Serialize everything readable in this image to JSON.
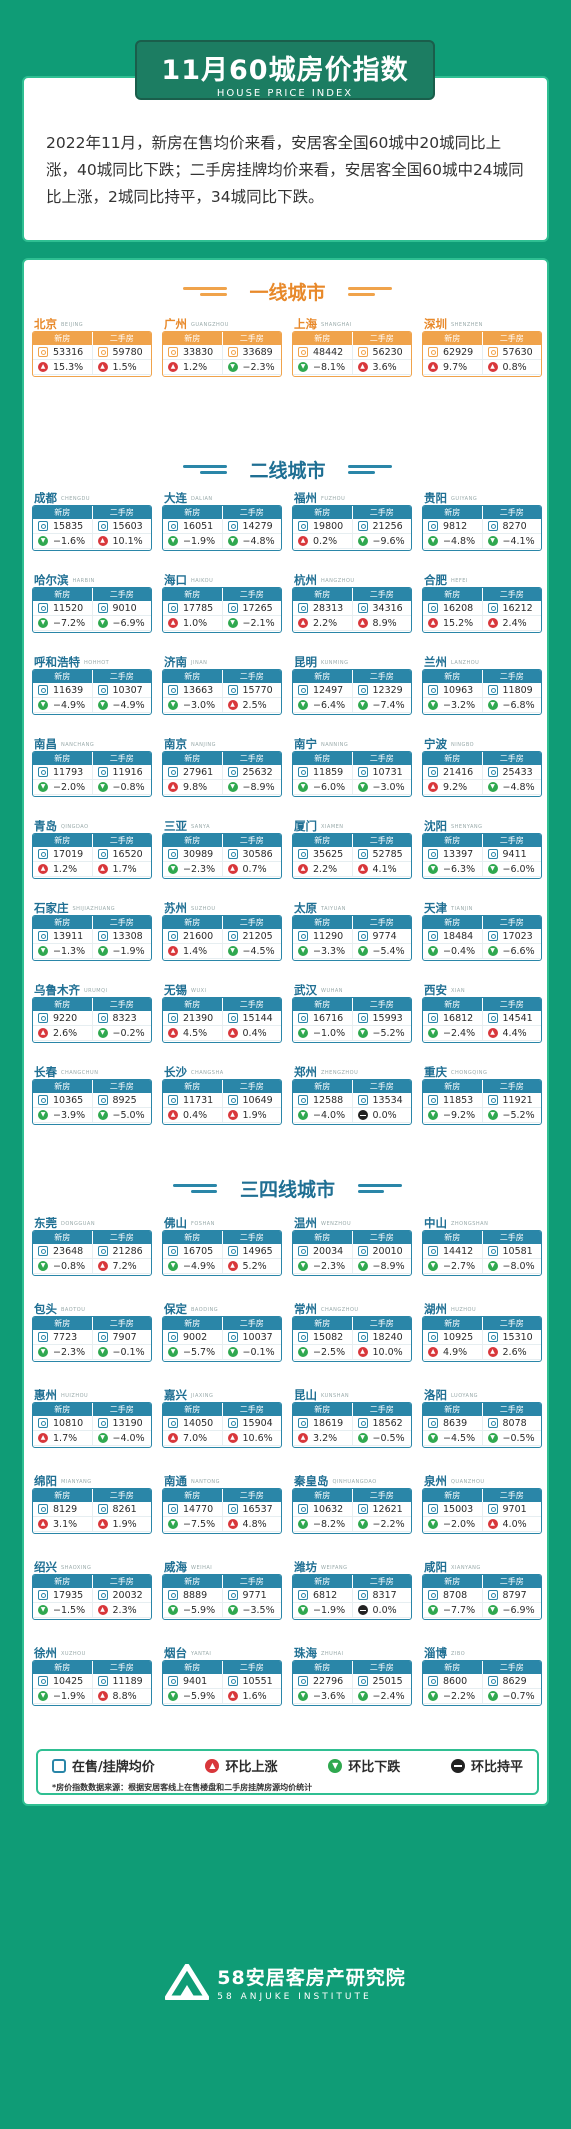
{
  "header": {
    "title": "11月60城房价指数",
    "subtitle": "HOUSE PRICE INDEX"
  },
  "intro": {
    "text": "2022年11月，新房在售均价来看，安居客全国60城中20城同比上涨，40城同比下跌；二手房挂牌均价来看，安居客全国60城中24城同比上涨，2城同比持平，34城同比下跌。"
  },
  "columns": {
    "new": "新房",
    "second": "二手房"
  },
  "tiers": [
    {
      "title": "一线城市",
      "cities": [
        {
          "name": "北京",
          "py": "BEIJING",
          "new_price": "53316",
          "new_chg": "15.3%",
          "new_dir": "up",
          "sec_price": "59780",
          "sec_chg": "1.5%",
          "sec_dir": "up"
        },
        {
          "name": "广州",
          "py": "GUANGZHOU",
          "new_price": "33830",
          "new_chg": "1.2%",
          "new_dir": "up",
          "sec_price": "33689",
          "sec_chg": "−2.3%",
          "sec_dir": "down"
        },
        {
          "name": "上海",
          "py": "SHANGHAI",
          "new_price": "48442",
          "new_chg": "−8.1%",
          "new_dir": "down",
          "sec_price": "56230",
          "sec_chg": "3.6%",
          "sec_dir": "up"
        },
        {
          "name": "深圳",
          "py": "SHENZHEN",
          "new_price": "62929",
          "new_chg": "9.7%",
          "new_dir": "up",
          "sec_price": "57630",
          "sec_chg": "0.8%",
          "sec_dir": "up"
        }
      ]
    },
    {
      "title": "二线城市",
      "cities": [
        {
          "name": "成都",
          "py": "CHENGDU",
          "new_price": "15835",
          "new_chg": "−1.6%",
          "new_dir": "down",
          "sec_price": "15603",
          "sec_chg": "10.1%",
          "sec_dir": "up"
        },
        {
          "name": "大连",
          "py": "DALIAN",
          "new_price": "16051",
          "new_chg": "−1.9%",
          "new_dir": "down",
          "sec_price": "14279",
          "sec_chg": "−4.8%",
          "sec_dir": "down"
        },
        {
          "name": "福州",
          "py": "FUZHOU",
          "new_price": "19800",
          "new_chg": "0.2%",
          "new_dir": "up",
          "sec_price": "21256",
          "sec_chg": "−9.6%",
          "sec_dir": "down"
        },
        {
          "name": "贵阳",
          "py": "GUIYANG",
          "new_price": "9812",
          "new_chg": "−4.8%",
          "new_dir": "down",
          "sec_price": "8270",
          "sec_chg": "−4.1%",
          "sec_dir": "down"
        },
        {
          "name": "哈尔滨",
          "py": "HARBIN",
          "new_price": "11520",
          "new_chg": "−7.2%",
          "new_dir": "down",
          "sec_price": "9010",
          "sec_chg": "−6.9%",
          "sec_dir": "down"
        },
        {
          "name": "海口",
          "py": "HAIKOU",
          "new_price": "17785",
          "new_chg": "1.0%",
          "new_dir": "up",
          "sec_price": "17265",
          "sec_chg": "−2.1%",
          "sec_dir": "down"
        },
        {
          "name": "杭州",
          "py": "HANGZHOU",
          "new_price": "28313",
          "new_chg": "2.2%",
          "new_dir": "up",
          "sec_price": "34316",
          "sec_chg": "8.9%",
          "sec_dir": "up"
        },
        {
          "name": "合肥",
          "py": "HEFEI",
          "new_price": "16208",
          "new_chg": "15.2%",
          "new_dir": "up",
          "sec_price": "16212",
          "sec_chg": "2.4%",
          "sec_dir": "up"
        },
        {
          "name": "呼和浩特",
          "py": "HOHHOT",
          "new_price": "11639",
          "new_chg": "−4.9%",
          "new_dir": "down",
          "sec_price": "10307",
          "sec_chg": "−4.9%",
          "sec_dir": "down"
        },
        {
          "name": "济南",
          "py": "JINAN",
          "new_price": "13663",
          "new_chg": "−3.0%",
          "new_dir": "down",
          "sec_price": "15770",
          "sec_chg": "2.5%",
          "sec_dir": "up"
        },
        {
          "name": "昆明",
          "py": "KUNMING",
          "new_price": "12497",
          "new_chg": "−6.4%",
          "new_dir": "down",
          "sec_price": "12329",
          "sec_chg": "−7.4%",
          "sec_dir": "down"
        },
        {
          "name": "兰州",
          "py": "LANZHOU",
          "new_price": "10963",
          "new_chg": "−3.2%",
          "new_dir": "down",
          "sec_price": "11809",
          "sec_chg": "−6.8%",
          "sec_dir": "down"
        },
        {
          "name": "南昌",
          "py": "NANCHANG",
          "new_price": "11793",
          "new_chg": "−2.0%",
          "new_dir": "down",
          "sec_price": "11916",
          "sec_chg": "−0.8%",
          "sec_dir": "down"
        },
        {
          "name": "南京",
          "py": "NANJING",
          "new_price": "27961",
          "new_chg": "9.8%",
          "new_dir": "up",
          "sec_price": "25632",
          "sec_chg": "−8.9%",
          "sec_dir": "down"
        },
        {
          "name": "南宁",
          "py": "NANNING",
          "new_price": "11859",
          "new_chg": "−6.0%",
          "new_dir": "down",
          "sec_price": "10731",
          "sec_chg": "−3.0%",
          "sec_dir": "down"
        },
        {
          "name": "宁波",
          "py": "NINGBO",
          "new_price": "21416",
          "new_chg": "9.2%",
          "new_dir": "up",
          "sec_price": "25433",
          "sec_chg": "−4.8%",
          "sec_dir": "down"
        },
        {
          "name": "青岛",
          "py": "QINGDAO",
          "new_price": "17019",
          "new_chg": "1.2%",
          "new_dir": "up",
          "sec_price": "16520",
          "sec_chg": "1.7%",
          "sec_dir": "up"
        },
        {
          "name": "三亚",
          "py": "SANYA",
          "new_price": "30989",
          "new_chg": "−2.3%",
          "new_dir": "down",
          "sec_price": "30586",
          "sec_chg": "0.7%",
          "sec_dir": "up"
        },
        {
          "name": "厦门",
          "py": "XIAMEN",
          "new_price": "35625",
          "new_chg": "2.2%",
          "new_dir": "up",
          "sec_price": "52785",
          "sec_chg": "4.1%",
          "sec_dir": "up"
        },
        {
          "name": "沈阳",
          "py": "SHENYANG",
          "new_price": "13397",
          "new_chg": "−6.3%",
          "new_dir": "down",
          "sec_price": "9411",
          "sec_chg": "−6.0%",
          "sec_dir": "down"
        },
        {
          "name": "石家庄",
          "py": "SHIJIAZHUANG",
          "new_price": "13911",
          "new_chg": "−1.3%",
          "new_dir": "down",
          "sec_price": "13308",
          "sec_chg": "−1.9%",
          "sec_dir": "down"
        },
        {
          "name": "苏州",
          "py": "SUZHOU",
          "new_price": "21600",
          "new_chg": "1.4%",
          "new_dir": "up",
          "sec_price": "21205",
          "sec_chg": "−4.5%",
          "sec_dir": "down"
        },
        {
          "name": "太原",
          "py": "TAIYUAN",
          "new_price": "11290",
          "new_chg": "−3.3%",
          "new_dir": "down",
          "sec_price": "9774",
          "sec_chg": "−5.4%",
          "sec_dir": "down"
        },
        {
          "name": "天津",
          "py": "TIANJIN",
          "new_price": "18484",
          "new_chg": "−0.4%",
          "new_dir": "down",
          "sec_price": "17023",
          "sec_chg": "−6.6%",
          "sec_dir": "down"
        },
        {
          "name": "乌鲁木齐",
          "py": "URUMQI",
          "new_price": "9220",
          "new_chg": "2.6%",
          "new_dir": "up",
          "sec_price": "8323",
          "sec_chg": "−0.2%",
          "sec_dir": "down"
        },
        {
          "name": "无锡",
          "py": "WUXI",
          "new_price": "21390",
          "new_chg": "4.5%",
          "new_dir": "up",
          "sec_price": "15144",
          "sec_chg": "0.4%",
          "sec_dir": "up"
        },
        {
          "name": "武汉",
          "py": "WUHAN",
          "new_price": "16716",
          "new_chg": "−1.0%",
          "new_dir": "down",
          "sec_price": "15993",
          "sec_chg": "−5.2%",
          "sec_dir": "down"
        },
        {
          "name": "西安",
          "py": "XIAN",
          "new_price": "16812",
          "new_chg": "−2.4%",
          "new_dir": "down",
          "sec_price": "14541",
          "sec_chg": "4.4%",
          "sec_dir": "up"
        },
        {
          "name": "长春",
          "py": "CHANGCHUN",
          "new_price": "10365",
          "new_chg": "−3.9%",
          "new_dir": "down",
          "sec_price": "8925",
          "sec_chg": "−5.0%",
          "sec_dir": "down"
        },
        {
          "name": "长沙",
          "py": "CHANGSHA",
          "new_price": "11731",
          "new_chg": "0.4%",
          "new_dir": "up",
          "sec_price": "10649",
          "sec_chg": "1.9%",
          "sec_dir": "up"
        },
        {
          "name": "郑州",
          "py": "ZHENGZHOU",
          "new_price": "12588",
          "new_chg": "−4.0%",
          "new_dir": "down",
          "sec_price": "13534",
          "sec_chg": "0.0%",
          "sec_dir": "flat"
        },
        {
          "name": "重庆",
          "py": "CHONGQING",
          "new_price": "11853",
          "new_chg": "−9.2%",
          "new_dir": "down",
          "sec_price": "11921",
          "sec_chg": "−5.2%",
          "sec_dir": "down"
        }
      ]
    },
    {
      "title": "三四线城市",
      "cities": [
        {
          "name": "东莞",
          "py": "DONGGUAN",
          "new_price": "23648",
          "new_chg": "−0.8%",
          "new_dir": "down",
          "sec_price": "21286",
          "sec_chg": "7.2%",
          "sec_dir": "up"
        },
        {
          "name": "佛山",
          "py": "FOSHAN",
          "new_price": "16705",
          "new_chg": "−4.9%",
          "new_dir": "down",
          "sec_price": "14965",
          "sec_chg": "5.2%",
          "sec_dir": "up"
        },
        {
          "name": "温州",
          "py": "WENZHOU",
          "new_price": "20034",
          "new_chg": "−2.3%",
          "new_dir": "down",
          "sec_price": "20010",
          "sec_chg": "−8.9%",
          "sec_dir": "down"
        },
        {
          "name": "中山",
          "py": "ZHONGSHAN",
          "new_price": "14412",
          "new_chg": "−2.7%",
          "new_dir": "down",
          "sec_price": "10581",
          "sec_chg": "−8.0%",
          "sec_dir": "down"
        },
        {
          "name": "包头",
          "py": "BAOTOU",
          "new_price": "7723",
          "new_chg": "−2.3%",
          "new_dir": "down",
          "sec_price": "7907",
          "sec_chg": "−0.1%",
          "sec_dir": "down"
        },
        {
          "name": "保定",
          "py": "BAODING",
          "new_price": "9002",
          "new_chg": "−5.7%",
          "new_dir": "down",
          "sec_price": "10037",
          "sec_chg": "−0.1%",
          "sec_dir": "down"
        },
        {
          "name": "常州",
          "py": "CHANGZHOU",
          "new_price": "15082",
          "new_chg": "−2.5%",
          "new_dir": "down",
          "sec_price": "18240",
          "sec_chg": "10.0%",
          "sec_dir": "up"
        },
        {
          "name": "湖州",
          "py": "HUZHOU",
          "new_price": "10925",
          "new_chg": "4.9%",
          "new_dir": "up",
          "sec_price": "15310",
          "sec_chg": "2.6%",
          "sec_dir": "up"
        },
        {
          "name": "惠州",
          "py": "HUIZHOU",
          "new_price": "10810",
          "new_chg": "1.7%",
          "new_dir": "up",
          "sec_price": "13190",
          "sec_chg": "−4.0%",
          "sec_dir": "down"
        },
        {
          "name": "嘉兴",
          "py": "JIAXING",
          "new_price": "14050",
          "new_chg": "7.0%",
          "new_dir": "up",
          "sec_price": "15904",
          "sec_chg": "10.6%",
          "sec_dir": "up"
        },
        {
          "name": "昆山",
          "py": "KUNSHAN",
          "new_price": "18619",
          "new_chg": "3.2%",
          "new_dir": "up",
          "sec_price": "18562",
          "sec_chg": "−0.5%",
          "sec_dir": "down"
        },
        {
          "name": "洛阳",
          "py": "LUOYANG",
          "new_price": "8639",
          "new_chg": "−4.5%",
          "new_dir": "down",
          "sec_price": "8078",
          "sec_chg": "−0.5%",
          "sec_dir": "down"
        },
        {
          "name": "绵阳",
          "py": "MIANYANG",
          "new_price": "8129",
          "new_chg": "3.1%",
          "new_dir": "up",
          "sec_price": "8261",
          "sec_chg": "1.9%",
          "sec_dir": "up"
        },
        {
          "name": "南通",
          "py": "NANTONG",
          "new_price": "14770",
          "new_chg": "−7.5%",
          "new_dir": "down",
          "sec_price": "16537",
          "sec_chg": "4.8%",
          "sec_dir": "up"
        },
        {
          "name": "秦皇岛",
          "py": "QINHUANGDAO",
          "new_price": "10632",
          "new_chg": "−8.2%",
          "new_dir": "down",
          "sec_price": "12621",
          "sec_chg": "−2.2%",
          "sec_dir": "down"
        },
        {
          "name": "泉州",
          "py": "QUANZHOU",
          "new_price": "15003",
          "new_chg": "−2.0%",
          "new_dir": "down",
          "sec_price": "9701",
          "sec_chg": "4.0%",
          "sec_dir": "up"
        },
        {
          "name": "绍兴",
          "py": "SHAOXING",
          "new_price": "17935",
          "new_chg": "−1.5%",
          "new_dir": "down",
          "sec_price": "20032",
          "sec_chg": "2.3%",
          "sec_dir": "up"
        },
        {
          "name": "威海",
          "py": "WEIHAI",
          "new_price": "8889",
          "new_chg": "−5.9%",
          "new_dir": "down",
          "sec_price": "9771",
          "sec_chg": "−3.5%",
          "sec_dir": "down"
        },
        {
          "name": "潍坊",
          "py": "WEIFANG",
          "new_price": "6812",
          "new_chg": "−1.9%",
          "new_dir": "down",
          "sec_price": "8317",
          "sec_chg": "0.0%",
          "sec_dir": "flat"
        },
        {
          "name": "咸阳",
          "py": "XIANYANG",
          "new_price": "8708",
          "new_chg": "−7.7%",
          "new_dir": "down",
          "sec_price": "8797",
          "sec_chg": "−6.9%",
          "sec_dir": "down"
        },
        {
          "name": "徐州",
          "py": "XUZHOU",
          "new_price": "10425",
          "new_chg": "−1.9%",
          "new_dir": "down",
          "sec_price": "11189",
          "sec_chg": "8.8%",
          "sec_dir": "up"
        },
        {
          "name": "烟台",
          "py": "YANTAI",
          "new_price": "9401",
          "new_chg": "−5.9%",
          "new_dir": "down",
          "sec_price": "10551",
          "sec_chg": "1.6%",
          "sec_dir": "up"
        },
        {
          "name": "珠海",
          "py": "ZHUHAI",
          "new_price": "22796",
          "new_chg": "−3.6%",
          "new_dir": "down",
          "sec_price": "25015",
          "sec_chg": "−2.4%",
          "sec_dir": "down"
        },
        {
          "name": "淄博",
          "py": "ZIBO",
          "new_price": "8600",
          "new_chg": "−2.2%",
          "new_dir": "down",
          "sec_price": "8629",
          "sec_chg": "−0.7%",
          "sec_dir": "down"
        }
      ]
    }
  ],
  "legend": {
    "price": "在售/挂牌均价",
    "up": "环比上涨",
    "down": "环比下跌",
    "flat": "环比持平",
    "note": "*房价指数数据来源：根据安居客线上在售楼盘和二手房挂牌房源均价统计"
  },
  "footer": {
    "org": "58安居客房产研究院",
    "org_en": "58 ANJUKE INSTITUTE"
  },
  "colors": {
    "background": "#0f9c76",
    "tier1_accent": "#f0a34b",
    "tier2_accent": "#2a86a8",
    "up": "#d8373b",
    "down": "#2fa84f"
  }
}
